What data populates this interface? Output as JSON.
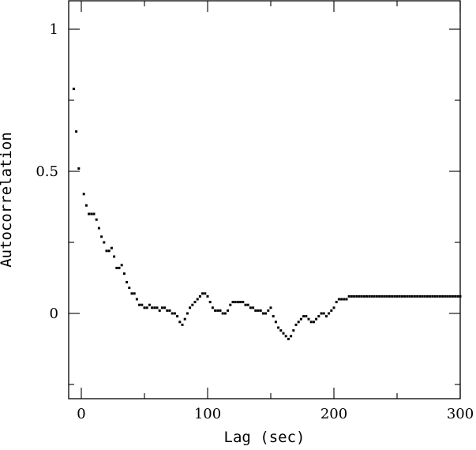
{
  "chart_data": {
    "type": "scatter",
    "xlabel": "Lag (sec)",
    "ylabel": "Autocorrelation",
    "xlim": [
      -10,
      300
    ],
    "ylim": [
      -0.3,
      1.1
    ],
    "x_ticks": [
      0,
      100,
      200,
      300
    ],
    "x_tick_labels": [
      "0",
      "100",
      "200",
      "300"
    ],
    "y_ticks": [
      0,
      0.5,
      1
    ],
    "y_tick_labels": [
      "0",
      "0.5",
      "1"
    ],
    "x_minor_ticks": [
      50,
      150,
      250
    ],
    "y_minor_ticks": [
      -0.25,
      0.25,
      0.75
    ],
    "grid": false,
    "legend": "none",
    "marker_color": "#000000",
    "series": [
      {
        "x": [
          -6,
          -4,
          -2,
          2,
          4,
          6,
          8,
          10,
          12,
          14,
          16,
          18,
          20,
          22,
          24,
          26,
          28,
          30,
          32,
          34,
          36,
          38,
          40,
          42,
          44,
          46,
          48,
          50,
          52,
          54,
          56,
          58,
          60,
          62,
          64,
          66,
          68,
          70,
          72,
          74,
          76,
          78,
          80,
          82,
          84,
          86,
          88,
          90,
          92,
          94,
          96,
          98,
          100,
          102,
          104,
          106,
          108,
          110,
          112,
          114,
          116,
          118,
          120,
          122,
          124,
          126,
          128,
          130,
          132,
          134,
          136,
          138,
          140,
          142,
          144,
          146,
          148,
          150,
          152,
          154,
          156,
          158,
          160,
          162,
          164,
          166,
          168,
          170,
          172,
          174,
          176,
          178,
          180,
          182,
          184,
          186,
          188,
          190,
          192,
          194,
          196,
          198,
          200,
          202,
          204,
          206,
          208,
          210,
          212,
          214,
          216,
          218,
          220,
          222,
          224,
          226,
          228,
          230,
          232,
          234,
          236,
          238,
          240,
          242,
          244,
          246,
          248,
          250,
          252,
          254,
          256,
          258,
          260,
          262,
          264,
          266,
          268,
          270,
          272,
          274,
          276,
          278,
          280,
          282,
          284,
          286,
          288,
          290,
          292,
          294,
          296,
          298,
          300
        ],
        "y": [
          0.79,
          0.64,
          0.51,
          0.42,
          0.38,
          0.35,
          0.35,
          0.35,
          0.33,
          0.3,
          0.27,
          0.25,
          0.22,
          0.22,
          0.23,
          0.2,
          0.16,
          0.16,
          0.17,
          0.14,
          0.11,
          0.09,
          0.07,
          0.07,
          0.05,
          0.03,
          0.03,
          0.02,
          0.02,
          0.03,
          0.02,
          0.02,
          0.02,
          0.01,
          0.02,
          0.02,
          0.01,
          0.01,
          0.0,
          0.0,
          -0.01,
          -0.03,
          -0.04,
          -0.02,
          0.0,
          0.02,
          0.03,
          0.04,
          0.05,
          0.06,
          0.07,
          0.07,
          0.06,
          0.04,
          0.02,
          0.01,
          0.01,
          0.01,
          0.0,
          0.0,
          0.01,
          0.03,
          0.04,
          0.04,
          0.04,
          0.04,
          0.04,
          0.03,
          0.03,
          0.02,
          0.02,
          0.01,
          0.01,
          0.01,
          0.0,
          0.0,
          0.01,
          0.02,
          -0.01,
          -0.03,
          -0.05,
          -0.06,
          -0.07,
          -0.08,
          -0.09,
          -0.08,
          -0.06,
          -0.04,
          -0.03,
          -0.02,
          -0.01,
          -0.01,
          -0.02,
          -0.03,
          -0.03,
          -0.02,
          -0.01,
          0.0,
          0.0,
          -0.01,
          0.0,
          0.01,
          0.02,
          0.04,
          0.05,
          0.05,
          0.05,
          0.05,
          0.06,
          0.06,
          0.06,
          0.06,
          0.06,
          0.06,
          0.06,
          0.06,
          0.06,
          0.06,
          0.06,
          0.06,
          0.06,
          0.06,
          0.06,
          0.06,
          0.06,
          0.06,
          0.06,
          0.06,
          0.06,
          0.06,
          0.06,
          0.06,
          0.06,
          0.06,
          0.06,
          0.06,
          0.06,
          0.06,
          0.06,
          0.06,
          0.06,
          0.06,
          0.06,
          0.06,
          0.06,
          0.06,
          0.06,
          0.06,
          0.06,
          0.06,
          0.06,
          0.06,
          0.06
        ]
      }
    ]
  }
}
